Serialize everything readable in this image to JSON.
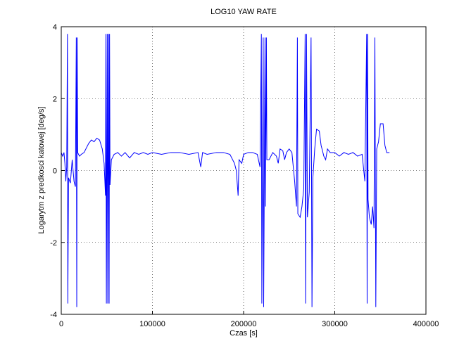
{
  "chart_data": {
    "type": "line",
    "title": "LOG10 YAW RATE",
    "xlabel": "Czas [s]",
    "ylabel": "Logarytm z predkosci katowej [deg/s]",
    "x": [
      0,
      1500,
      3000,
      4000,
      5000,
      6000,
      6800,
      7200,
      8000,
      10000,
      12000,
      14000,
      15500,
      16500,
      17000,
      17500,
      18000,
      20000,
      22000,
      25000,
      27000,
      30000,
      33000,
      36000,
      39000,
      42000,
      45000,
      47000,
      48500,
      49000,
      49500,
      50500,
      51000,
      52000,
      52500,
      53000,
      53500,
      55000,
      58000,
      62000,
      66000,
      70000,
      75000,
      80000,
      85000,
      90000,
      95000,
      100000,
      110000,
      120000,
      130000,
      140000,
      150000,
      153000,
      155000,
      160000,
      170000,
      178000,
      185000,
      190000,
      192000,
      194000,
      195000,
      198000,
      200000,
      205000,
      210000,
      215000,
      218000,
      219500,
      220000,
      221500,
      222000,
      223500,
      224000,
      225000,
      225500,
      228000,
      232000,
      236000,
      238000,
      240000,
      243000,
      245000,
      247000,
      250000,
      253000,
      256000,
      258000,
      259000,
      259500,
      262000,
      264000,
      266000,
      267500,
      268000,
      269000,
      270000,
      272000,
      274000,
      275000,
      276000,
      278000,
      280000,
      283000,
      285000,
      288000,
      290000,
      292000,
      295000,
      300000,
      305000,
      310000,
      315000,
      320000,
      325000,
      330000,
      333000,
      335000,
      335500,
      336000,
      336500,
      338000,
      340000,
      341500,
      343000,
      344000,
      345000,
      346000,
      348000,
      350000,
      353000,
      355000,
      357000,
      360000
    ],
    "values": [
      0.5,
      0.4,
      0.5,
      0.2,
      -0.3,
      0.1,
      3.8,
      -3.7,
      -0.2,
      -0.35,
      0.3,
      -0.3,
      -0.45,
      3.7,
      -3.8,
      3.7,
      0.5,
      0.4,
      0.45,
      0.5,
      0.6,
      0.75,
      0.85,
      0.8,
      0.9,
      0.85,
      0.6,
      0.2,
      -0.7,
      3.8,
      -3.7,
      3.8,
      -3.7,
      3.8,
      -3.7,
      3.8,
      -0.4,
      0.3,
      0.45,
      0.5,
      0.4,
      0.5,
      0.35,
      0.5,
      0.45,
      0.5,
      0.45,
      0.5,
      0.45,
      0.5,
      0.5,
      0.45,
      0.5,
      0.1,
      0.5,
      0.45,
      0.5,
      0.5,
      0.45,
      0.2,
      0,
      -0.7,
      0.3,
      0.2,
      0.45,
      0.5,
      0.5,
      0.45,
      0.1,
      3.8,
      -3.7,
      3.7,
      -3.8,
      3.7,
      -1.0,
      3.7,
      0.3,
      0.3,
      0.5,
      0.4,
      0.2,
      0.6,
      0.55,
      0.3,
      0.5,
      0.6,
      0.5,
      -0.3,
      -1.0,
      3.7,
      -1.2,
      -1.3,
      -1.0,
      -0.5,
      3.8,
      -3.7,
      3.8,
      -1.3,
      -0.6,
      3.7,
      -3.8,
      -0.2,
      0.6,
      1.15,
      1.1,
      0.7,
      0.4,
      0.3,
      0.6,
      0.5,
      0.5,
      0.4,
      0.5,
      0.45,
      0.5,
      0.4,
      0.45,
      -0.3,
      3.8,
      -3.7,
      3.8,
      -0.8,
      -1.3,
      -1.5,
      -1.0,
      -1.6,
      3.7,
      -3.8,
      0.6,
      0.8,
      1.3,
      1.3,
      0.7,
      0.5,
      0.5
    ],
    "color": "#0000ff",
    "xlim": [
      0,
      400000
    ],
    "xticks": [
      0,
      100000,
      200000,
      300000,
      400000
    ],
    "ylim": [
      -4,
      4
    ],
    "yticks": [
      -4,
      -2,
      0,
      2,
      4
    ],
    "grid": true
  }
}
